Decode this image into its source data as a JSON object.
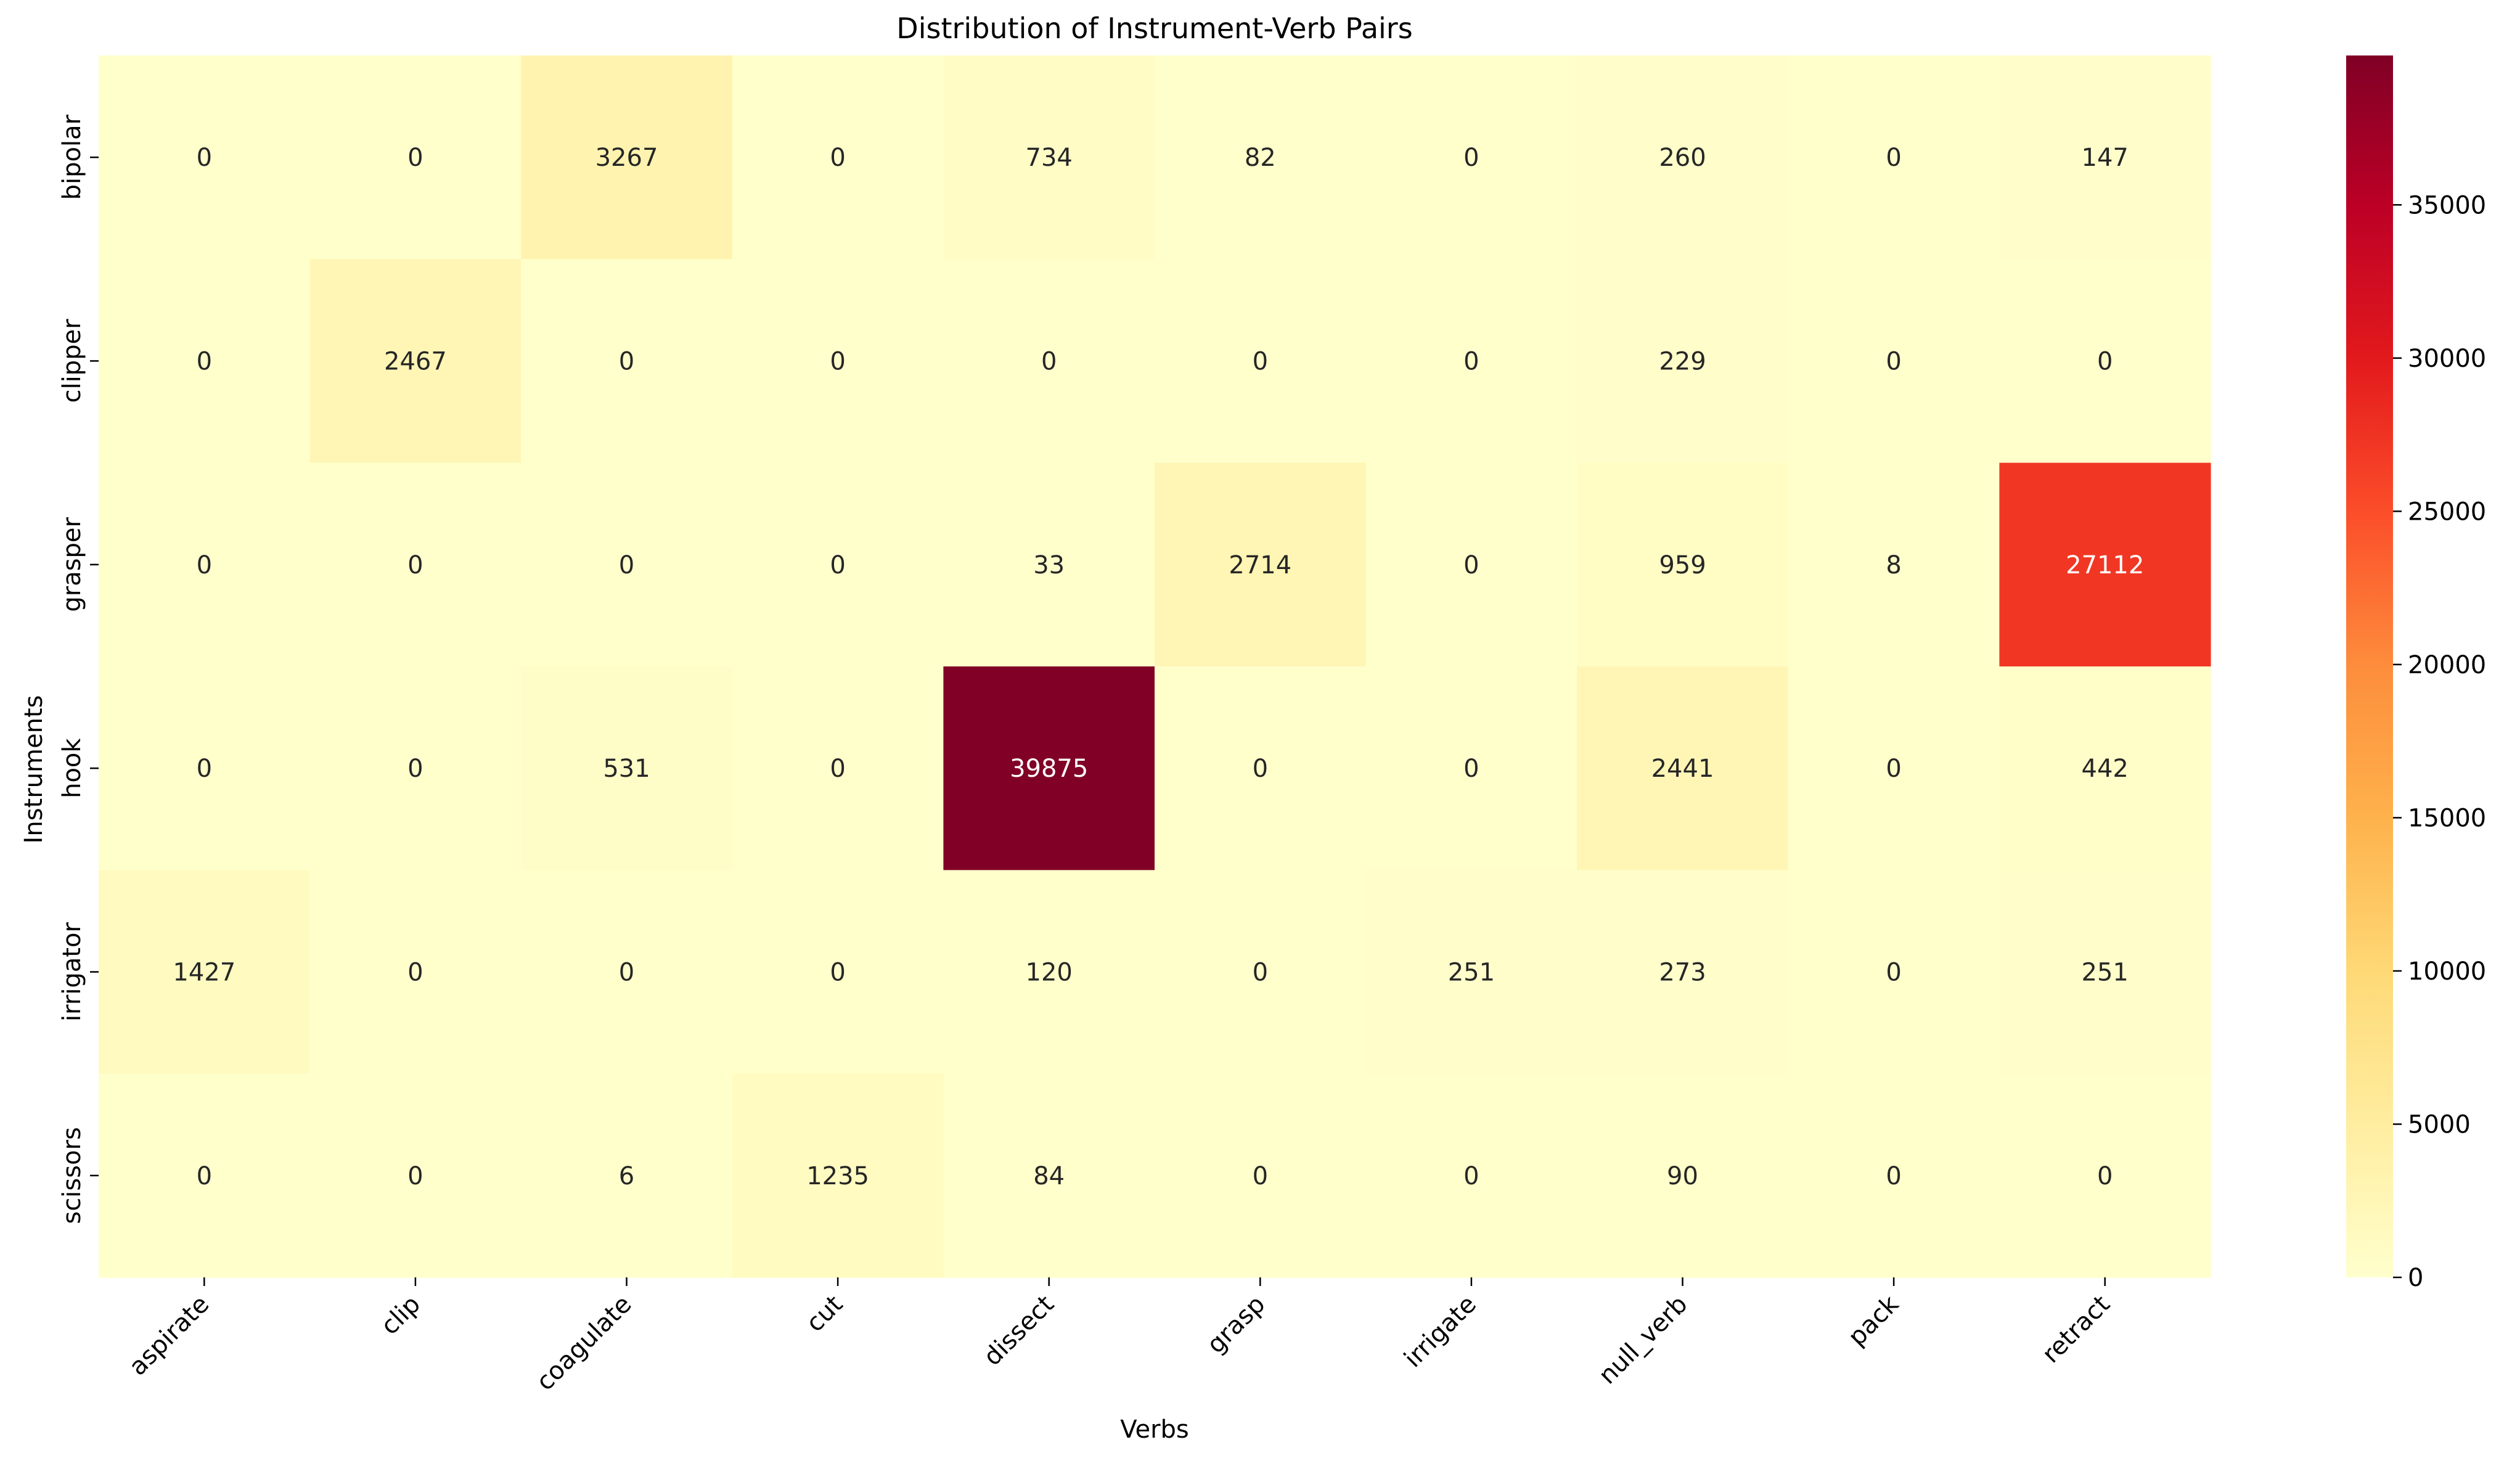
{
  "chart_data": {
    "type": "heatmap",
    "title": "Distribution of Instrument-Verb Pairs",
    "xlabel": "Verbs",
    "ylabel": "Instruments",
    "x_categories": [
      "aspirate",
      "clip",
      "coagulate",
      "cut",
      "dissect",
      "grasp",
      "irrigate",
      "null_verb",
      "pack",
      "retract"
    ],
    "y_categories": [
      "bipolar",
      "clipper",
      "grasper",
      "hook",
      "irrigator",
      "scissors"
    ],
    "values": [
      [
        0,
        0,
        3267,
        0,
        734,
        82,
        0,
        260,
        0,
        147
      ],
      [
        0,
        2467,
        0,
        0,
        0,
        0,
        0,
        229,
        0,
        0
      ],
      [
        0,
        0,
        0,
        0,
        33,
        2714,
        0,
        959,
        8,
        27112
      ],
      [
        0,
        0,
        531,
        0,
        39875,
        0,
        0,
        2441,
        0,
        442
      ],
      [
        1427,
        0,
        0,
        0,
        120,
        0,
        251,
        273,
        0,
        251
      ],
      [
        0,
        0,
        6,
        1235,
        84,
        0,
        0,
        90,
        0,
        0
      ]
    ],
    "colormap": "YlOrRd",
    "colormap_stops": [
      "#ffffcc",
      "#ffeda0",
      "#fed976",
      "#feb24c",
      "#fd8d3c",
      "#fc4e2a",
      "#e31a1c",
      "#bd0026",
      "#800026"
    ],
    "vmin": 0,
    "vmax": 39875,
    "colorbar_ticks": [
      0,
      5000,
      10000,
      15000,
      20000,
      25000,
      30000,
      35000
    ],
    "annotations": true,
    "grid": false
  }
}
